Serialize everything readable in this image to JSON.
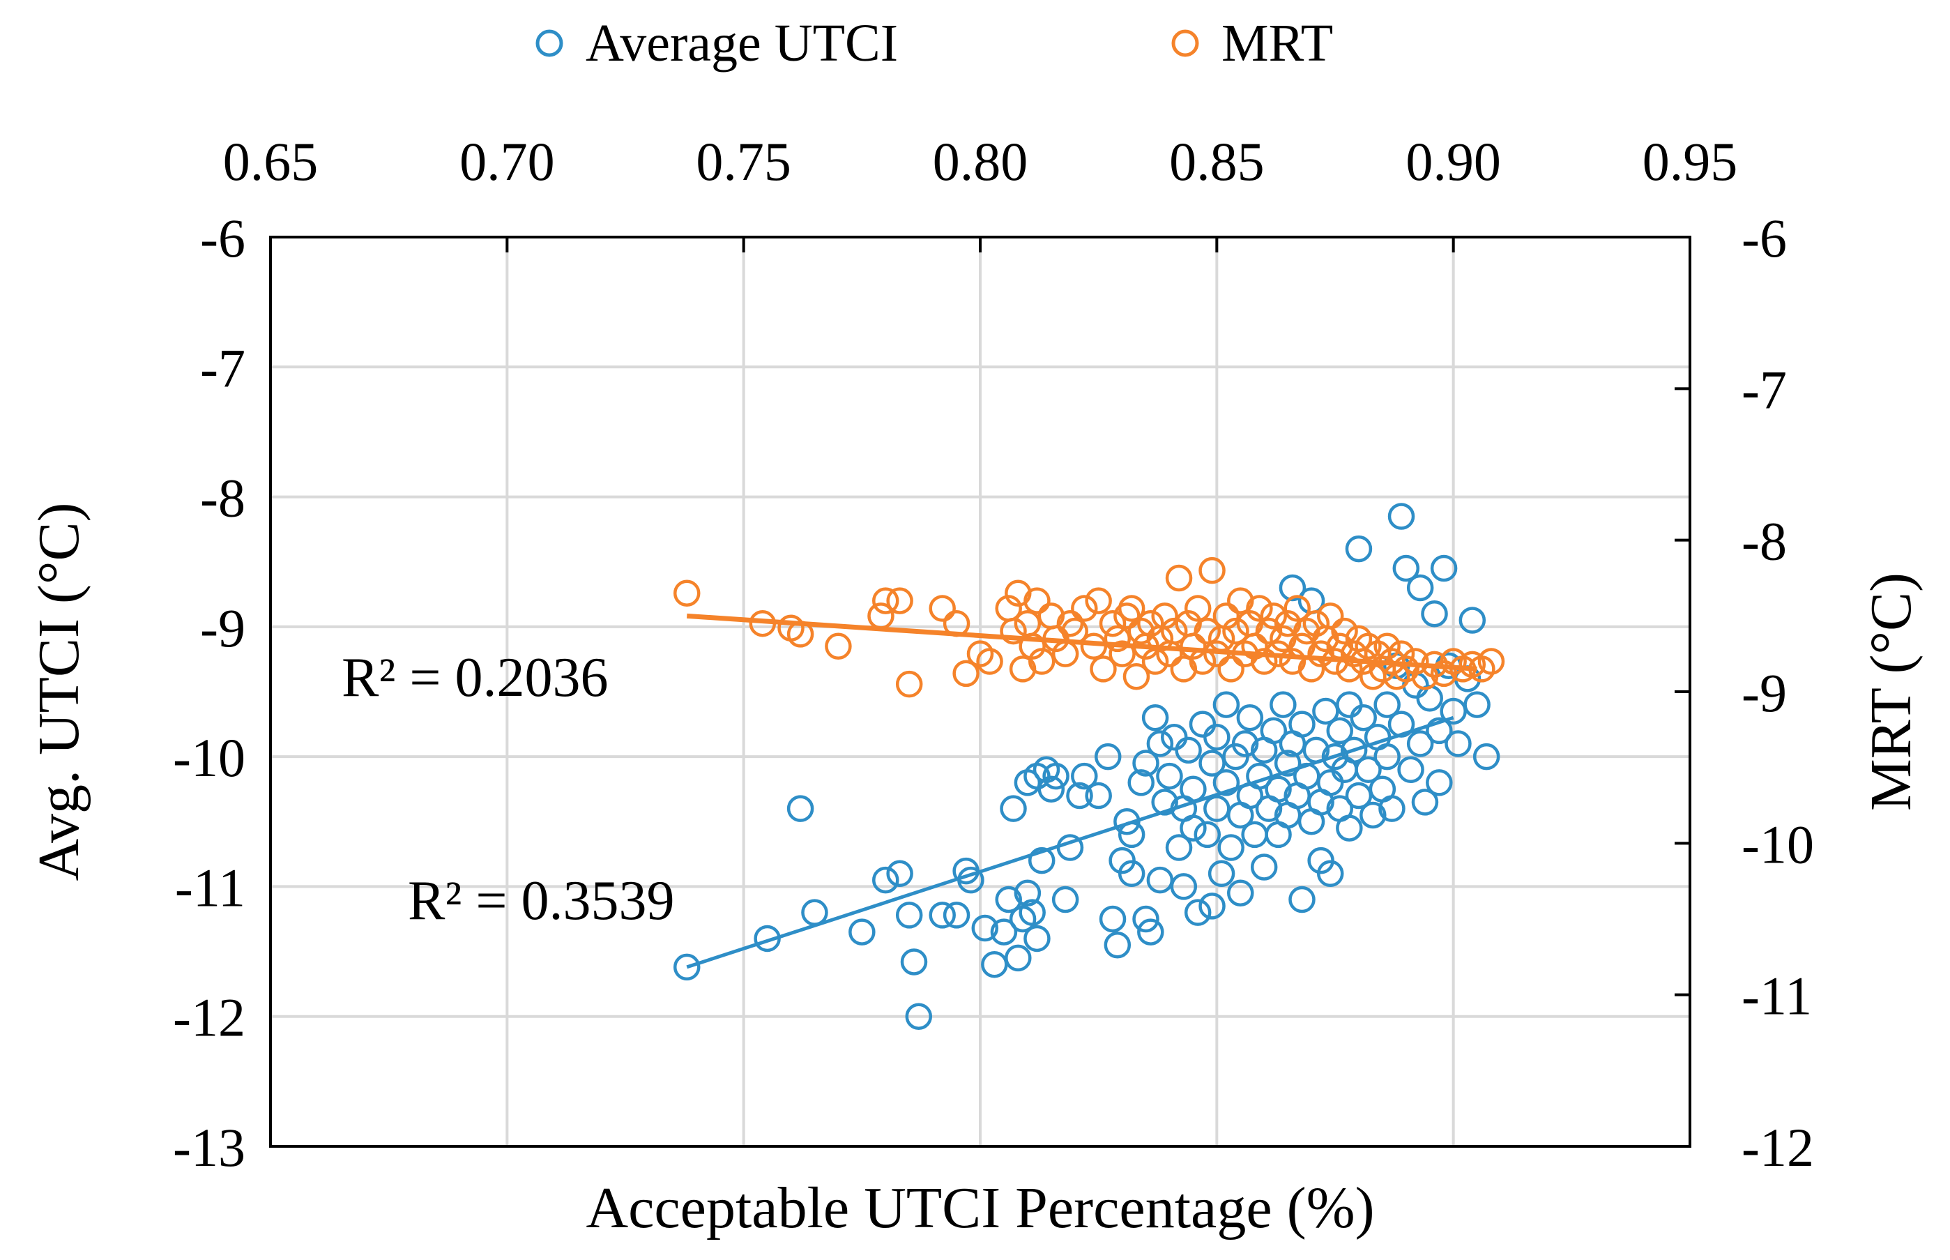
{
  "chart_data": {
    "type": "scatter",
    "title": "",
    "xlabel": "Acceptable UTCI Percentage (%)",
    "ylabel_left": "Avg. UTCI (°C)",
    "ylabel_right": "MRT (°C)",
    "x_axis_position": "top",
    "xlim": [
      0.65,
      0.95
    ],
    "xticks": [
      "0.65",
      "0.70",
      "0.75",
      "0.80",
      "0.85",
      "0.90",
      "0.95"
    ],
    "ylim_left": [
      -13,
      -6
    ],
    "yticks_left": [
      "-6",
      "-7",
      "-8",
      "-9",
      "-10",
      "-11",
      "-12",
      "-13"
    ],
    "ylim_right": [
      -12,
      -6
    ],
    "yticks_right": [
      "-6",
      "-7",
      "-8",
      "-9",
      "-10",
      "-11",
      "-12"
    ],
    "grid": true,
    "legend": {
      "placement": "top-center"
    },
    "series": [
      {
        "name": "Average UTCI",
        "color": "#2e8ec7",
        "axis": "left",
        "marker": "open-circle",
        "r2_label": "R² = 0.3539",
        "trend": {
          "x": [
            0.738,
            0.9
          ],
          "y": [
            -11.62,
            -9.7
          ]
        },
        "points": [
          [
            0.738,
            -11.62
          ],
          [
            0.755,
            -11.4
          ],
          [
            0.762,
            -10.4
          ],
          [
            0.765,
            -11.2
          ],
          [
            0.775,
            -11.35
          ],
          [
            0.78,
            -10.95
          ],
          [
            0.783,
            -10.9
          ],
          [
            0.785,
            -11.22
          ],
          [
            0.786,
            -11.58
          ],
          [
            0.787,
            -12.0
          ],
          [
            0.792,
            -11.22
          ],
          [
            0.795,
            -11.22
          ],
          [
            0.797,
            -10.88
          ],
          [
            0.798,
            -10.95
          ],
          [
            0.801,
            -11.32
          ],
          [
            0.803,
            -11.6
          ],
          [
            0.805,
            -11.35
          ],
          [
            0.806,
            -11.1
          ],
          [
            0.807,
            -10.4
          ],
          [
            0.808,
            -11.55
          ],
          [
            0.809,
            -11.25
          ],
          [
            0.81,
            -11.05
          ],
          [
            0.81,
            -10.2
          ],
          [
            0.811,
            -11.2
          ],
          [
            0.812,
            -10.15
          ],
          [
            0.812,
            -11.4
          ],
          [
            0.813,
            -10.8
          ],
          [
            0.814,
            -10.1
          ],
          [
            0.815,
            -10.25
          ],
          [
            0.816,
            -10.15
          ],
          [
            0.818,
            -11.1
          ],
          [
            0.819,
            -10.7
          ],
          [
            0.821,
            -10.3
          ],
          [
            0.822,
            -10.15
          ],
          [
            0.825,
            -10.3
          ],
          [
            0.827,
            -10.0
          ],
          [
            0.828,
            -11.25
          ],
          [
            0.829,
            -11.45
          ],
          [
            0.83,
            -10.8
          ],
          [
            0.831,
            -10.5
          ],
          [
            0.832,
            -10.9
          ],
          [
            0.832,
            -10.6
          ],
          [
            0.834,
            -10.2
          ],
          [
            0.835,
            -10.05
          ],
          [
            0.835,
            -11.25
          ],
          [
            0.836,
            -11.35
          ],
          [
            0.837,
            -9.7
          ],
          [
            0.838,
            -10.95
          ],
          [
            0.838,
            -9.9
          ],
          [
            0.839,
            -10.35
          ],
          [
            0.84,
            -10.15
          ],
          [
            0.841,
            -9.85
          ],
          [
            0.842,
            -10.7
          ],
          [
            0.843,
            -10.4
          ],
          [
            0.843,
            -11.0
          ],
          [
            0.844,
            -9.95
          ],
          [
            0.845,
            -10.55
          ],
          [
            0.845,
            -10.25
          ],
          [
            0.846,
            -11.2
          ],
          [
            0.847,
            -9.75
          ],
          [
            0.848,
            -10.6
          ],
          [
            0.849,
            -11.15
          ],
          [
            0.849,
            -10.05
          ],
          [
            0.85,
            -10.4
          ],
          [
            0.85,
            -9.85
          ],
          [
            0.851,
            -10.9
          ],
          [
            0.852,
            -10.2
          ],
          [
            0.852,
            -9.6
          ],
          [
            0.853,
            -10.7
          ],
          [
            0.854,
            -10.0
          ],
          [
            0.855,
            -11.05
          ],
          [
            0.855,
            -10.45
          ],
          [
            0.856,
            -9.9
          ],
          [
            0.857,
            -10.3
          ],
          [
            0.857,
            -9.7
          ],
          [
            0.858,
            -10.6
          ],
          [
            0.859,
            -10.15
          ],
          [
            0.86,
            -9.95
          ],
          [
            0.86,
            -10.85
          ],
          [
            0.861,
            -10.4
          ],
          [
            0.862,
            -9.8
          ],
          [
            0.863,
            -10.25
          ],
          [
            0.863,
            -10.6
          ],
          [
            0.864,
            -9.6
          ],
          [
            0.865,
            -10.05
          ],
          [
            0.865,
            -10.45
          ],
          [
            0.866,
            -8.7
          ],
          [
            0.866,
            -9.9
          ],
          [
            0.867,
            -10.3
          ],
          [
            0.868,
            -11.1
          ],
          [
            0.868,
            -9.75
          ],
          [
            0.869,
            -10.15
          ],
          [
            0.87,
            -10.5
          ],
          [
            0.87,
            -8.8
          ],
          [
            0.871,
            -9.95
          ],
          [
            0.872,
            -10.35
          ],
          [
            0.872,
            -10.8
          ],
          [
            0.873,
            -9.65
          ],
          [
            0.874,
            -10.2
          ],
          [
            0.874,
            -10.9
          ],
          [
            0.875,
            -10.0
          ],
          [
            0.876,
            -10.4
          ],
          [
            0.876,
            -9.8
          ],
          [
            0.877,
            -10.1
          ],
          [
            0.878,
            -10.55
          ],
          [
            0.878,
            -9.6
          ],
          [
            0.879,
            -9.95
          ],
          [
            0.88,
            -10.3
          ],
          [
            0.88,
            -8.4
          ],
          [
            0.881,
            -9.7
          ],
          [
            0.882,
            -10.1
          ],
          [
            0.883,
            -10.45
          ],
          [
            0.884,
            -9.85
          ],
          [
            0.885,
            -10.25
          ],
          [
            0.886,
            -9.6
          ],
          [
            0.886,
            -10.0
          ],
          [
            0.887,
            -10.4
          ],
          [
            0.888,
            -9.3
          ],
          [
            0.889,
            -8.15
          ],
          [
            0.889,
            -9.75
          ],
          [
            0.89,
            -8.55
          ],
          [
            0.891,
            -10.1
          ],
          [
            0.892,
            -9.45
          ],
          [
            0.893,
            -8.7
          ],
          [
            0.893,
            -9.9
          ],
          [
            0.894,
            -10.35
          ],
          [
            0.895,
            -9.55
          ],
          [
            0.896,
            -8.9
          ],
          [
            0.897,
            -9.8
          ],
          [
            0.897,
            -10.2
          ],
          [
            0.898,
            -8.55
          ],
          [
            0.899,
            -9.3
          ],
          [
            0.9,
            -9.65
          ],
          [
            0.901,
            -9.9
          ],
          [
            0.903,
            -9.4
          ],
          [
            0.904,
            -8.95
          ],
          [
            0.905,
            -9.6
          ],
          [
            0.907,
            -10.0
          ]
        ]
      },
      {
        "name": "MRT",
        "color": "#f5832a",
        "axis": "right",
        "marker": "open-circle",
        "r2_label": "R² = 0.2036",
        "trend": {
          "x": [
            0.738,
            0.905
          ],
          "y": [
            -8.5,
            -8.85
          ]
        },
        "points": [
          [
            0.738,
            -8.35
          ],
          [
            0.754,
            -8.55
          ],
          [
            0.76,
            -8.58
          ],
          [
            0.762,
            -8.62
          ],
          [
            0.77,
            -8.7
          ],
          [
            0.779,
            -8.5
          ],
          [
            0.78,
            -8.4
          ],
          [
            0.783,
            -8.4
          ],
          [
            0.785,
            -8.95
          ],
          [
            0.792,
            -8.45
          ],
          [
            0.795,
            -8.55
          ],
          [
            0.797,
            -8.88
          ],
          [
            0.8,
            -8.75
          ],
          [
            0.802,
            -8.8
          ],
          [
            0.806,
            -8.45
          ],
          [
            0.807,
            -8.6
          ],
          [
            0.808,
            -8.35
          ],
          [
            0.809,
            -8.85
          ],
          [
            0.81,
            -8.55
          ],
          [
            0.811,
            -8.7
          ],
          [
            0.812,
            -8.4
          ],
          [
            0.813,
            -8.8
          ],
          [
            0.815,
            -8.5
          ],
          [
            0.816,
            -8.65
          ],
          [
            0.818,
            -8.75
          ],
          [
            0.819,
            -8.55
          ],
          [
            0.82,
            -8.6
          ],
          [
            0.822,
            -8.45
          ],
          [
            0.824,
            -8.7
          ],
          [
            0.825,
            -8.4
          ],
          [
            0.826,
            -8.85
          ],
          [
            0.828,
            -8.55
          ],
          [
            0.829,
            -8.65
          ],
          [
            0.83,
            -8.75
          ],
          [
            0.831,
            -8.5
          ],
          [
            0.832,
            -8.45
          ],
          [
            0.833,
            -8.9
          ],
          [
            0.834,
            -8.6
          ],
          [
            0.835,
            -8.7
          ],
          [
            0.836,
            -8.55
          ],
          [
            0.837,
            -8.8
          ],
          [
            0.838,
            -8.65
          ],
          [
            0.839,
            -8.5
          ],
          [
            0.84,
            -8.75
          ],
          [
            0.841,
            -8.6
          ],
          [
            0.842,
            -8.25
          ],
          [
            0.843,
            -8.85
          ],
          [
            0.844,
            -8.55
          ],
          [
            0.845,
            -8.7
          ],
          [
            0.846,
            -8.45
          ],
          [
            0.847,
            -8.8
          ],
          [
            0.848,
            -8.6
          ],
          [
            0.849,
            -8.2
          ],
          [
            0.85,
            -8.75
          ],
          [
            0.851,
            -8.65
          ],
          [
            0.852,
            -8.5
          ],
          [
            0.853,
            -8.85
          ],
          [
            0.854,
            -8.6
          ],
          [
            0.855,
            -8.4
          ],
          [
            0.856,
            -8.75
          ],
          [
            0.857,
            -8.55
          ],
          [
            0.858,
            -8.7
          ],
          [
            0.859,
            -8.45
          ],
          [
            0.86,
            -8.8
          ],
          [
            0.861,
            -8.6
          ],
          [
            0.862,
            -8.5
          ],
          [
            0.863,
            -8.75
          ],
          [
            0.864,
            -8.65
          ],
          [
            0.865,
            -8.55
          ],
          [
            0.866,
            -8.8
          ],
          [
            0.867,
            -8.45
          ],
          [
            0.868,
            -8.7
          ],
          [
            0.869,
            -8.6
          ],
          [
            0.87,
            -8.85
          ],
          [
            0.871,
            -8.55
          ],
          [
            0.872,
            -8.75
          ],
          [
            0.873,
            -8.65
          ],
          [
            0.874,
            -8.5
          ],
          [
            0.875,
            -8.8
          ],
          [
            0.876,
            -8.7
          ],
          [
            0.877,
            -8.6
          ],
          [
            0.878,
            -8.85
          ],
          [
            0.879,
            -8.75
          ],
          [
            0.88,
            -8.65
          ],
          [
            0.881,
            -8.8
          ],
          [
            0.882,
            -8.7
          ],
          [
            0.883,
            -8.9
          ],
          [
            0.884,
            -8.75
          ],
          [
            0.885,
            -8.85
          ],
          [
            0.886,
            -8.7
          ],
          [
            0.887,
            -8.8
          ],
          [
            0.888,
            -8.9
          ],
          [
            0.889,
            -8.75
          ],
          [
            0.89,
            -8.85
          ],
          [
            0.892,
            -8.8
          ],
          [
            0.894,
            -8.9
          ],
          [
            0.896,
            -8.82
          ],
          [
            0.898,
            -8.88
          ],
          [
            0.9,
            -8.8
          ],
          [
            0.902,
            -8.85
          ],
          [
            0.904,
            -8.82
          ],
          [
            0.906,
            -8.85
          ],
          [
            0.908,
            -8.8
          ]
        ]
      }
    ]
  }
}
